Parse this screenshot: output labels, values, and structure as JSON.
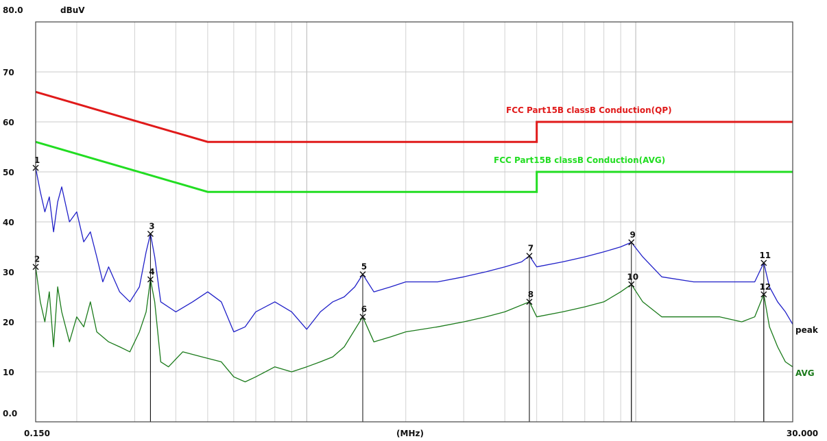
{
  "chart_data": {
    "type": "line",
    "x_scale": "log",
    "xlim": [
      0.15,
      30.0
    ],
    "ylim": [
      0,
      80
    ],
    "grid": true,
    "ylabel": "dBuV",
    "xlabel": "(MHz)",
    "y_ticks": [
      "0.0",
      "10",
      "20",
      "30",
      "40",
      "50",
      "60",
      "70",
      "80.0"
    ],
    "y_tick_values": [
      0,
      10,
      20,
      30,
      40,
      50,
      60,
      70,
      80
    ],
    "x_tick_labels": [
      "0.150",
      "30.000"
    ],
    "limits": [
      {
        "name": "FCC  Part15B classB Conduction(QP)",
        "color": "#e01a1a",
        "points": [
          [
            0.15,
            66
          ],
          [
            0.5,
            56
          ],
          [
            5.0,
            56
          ],
          [
            5.0,
            60
          ],
          [
            30.0,
            60
          ]
        ]
      },
      {
        "name": "FCC  Part15B classB Conduction(AVG)",
        "color": "#22dd22",
        "points": [
          [
            0.15,
            56
          ],
          [
            0.5,
            46
          ],
          [
            5.0,
            46
          ],
          [
            5.0,
            50
          ],
          [
            30.0,
            50
          ]
        ]
      }
    ],
    "series": [
      {
        "name": "peak",
        "color": "#1f1fc8",
        "points": [
          [
            0.15,
            50.8
          ],
          [
            0.155,
            46
          ],
          [
            0.16,
            42
          ],
          [
            0.165,
            45
          ],
          [
            0.17,
            38
          ],
          [
            0.175,
            44
          ],
          [
            0.18,
            47
          ],
          [
            0.19,
            40
          ],
          [
            0.2,
            42
          ],
          [
            0.21,
            36
          ],
          [
            0.22,
            38
          ],
          [
            0.23,
            33
          ],
          [
            0.24,
            28
          ],
          [
            0.25,
            31
          ],
          [
            0.27,
            26
          ],
          [
            0.29,
            24
          ],
          [
            0.31,
            27
          ],
          [
            0.325,
            34
          ],
          [
            0.335,
            37.6
          ],
          [
            0.345,
            33
          ],
          [
            0.36,
            24
          ],
          [
            0.4,
            22
          ],
          [
            0.45,
            24
          ],
          [
            0.5,
            26
          ],
          [
            0.55,
            24
          ],
          [
            0.6,
            18
          ],
          [
            0.65,
            19
          ],
          [
            0.7,
            22
          ],
          [
            0.8,
            24
          ],
          [
            0.9,
            22
          ],
          [
            1.0,
            18.5
          ],
          [
            1.1,
            22
          ],
          [
            1.2,
            24
          ],
          [
            1.3,
            25
          ],
          [
            1.4,
            27
          ],
          [
            1.48,
            29.5
          ],
          [
            1.6,
            26
          ],
          [
            1.8,
            27
          ],
          [
            2.0,
            28
          ],
          [
            2.5,
            28
          ],
          [
            3.0,
            29
          ],
          [
            3.5,
            30
          ],
          [
            4.0,
            31
          ],
          [
            4.5,
            32
          ],
          [
            4.75,
            33.2
          ],
          [
            5.0,
            31
          ],
          [
            6.0,
            32
          ],
          [
            7.0,
            33
          ],
          [
            8.0,
            34
          ],
          [
            9.0,
            35
          ],
          [
            9.7,
            35.9
          ],
          [
            10.5,
            33
          ],
          [
            12.0,
            29
          ],
          [
            15.0,
            28
          ],
          [
            18.0,
            28
          ],
          [
            21.0,
            28
          ],
          [
            23.0,
            28
          ],
          [
            24.5,
            31.8
          ],
          [
            25.5,
            27
          ],
          [
            27.0,
            24
          ],
          [
            28.5,
            22
          ],
          [
            30.0,
            19.5
          ]
        ]
      },
      {
        "name": "AVG",
        "color": "#1a7a1a",
        "points": [
          [
            0.15,
            31
          ],
          [
            0.155,
            24
          ],
          [
            0.16,
            20
          ],
          [
            0.165,
            26
          ],
          [
            0.17,
            15
          ],
          [
            0.175,
            27
          ],
          [
            0.18,
            22
          ],
          [
            0.19,
            16
          ],
          [
            0.2,
            21
          ],
          [
            0.21,
            19
          ],
          [
            0.22,
            24
          ],
          [
            0.23,
            18
          ],
          [
            0.25,
            16
          ],
          [
            0.27,
            15
          ],
          [
            0.29,
            14
          ],
          [
            0.31,
            18
          ],
          [
            0.325,
            22
          ],
          [
            0.335,
            28.5
          ],
          [
            0.345,
            24
          ],
          [
            0.36,
            12
          ],
          [
            0.38,
            11
          ],
          [
            0.42,
            14
          ],
          [
            0.48,
            13
          ],
          [
            0.55,
            12
          ],
          [
            0.6,
            9
          ],
          [
            0.65,
            8
          ],
          [
            0.7,
            9
          ],
          [
            0.8,
            11
          ],
          [
            0.9,
            10
          ],
          [
            1.0,
            11
          ],
          [
            1.1,
            12
          ],
          [
            1.2,
            13
          ],
          [
            1.3,
            15
          ],
          [
            1.48,
            21
          ],
          [
            1.6,
            16
          ],
          [
            1.8,
            17
          ],
          [
            2.0,
            18
          ],
          [
            2.5,
            19
          ],
          [
            3.0,
            20
          ],
          [
            3.5,
            21
          ],
          [
            4.0,
            22
          ],
          [
            4.75,
            24
          ],
          [
            5.0,
            21
          ],
          [
            6.0,
            22
          ],
          [
            7.0,
            23
          ],
          [
            8.0,
            24
          ],
          [
            9.0,
            26
          ],
          [
            9.7,
            27.5
          ],
          [
            10.5,
            24
          ],
          [
            12.0,
            21
          ],
          [
            15.0,
            21
          ],
          [
            18.0,
            21
          ],
          [
            21.0,
            20
          ],
          [
            23.0,
            21
          ],
          [
            24.5,
            25.5
          ],
          [
            25.5,
            19
          ],
          [
            27.0,
            15
          ],
          [
            28.5,
            12
          ],
          [
            30.0,
            11
          ]
        ]
      }
    ],
    "markers": [
      {
        "label": "1",
        "x": 0.15,
        "y": 50.8
      },
      {
        "label": "2",
        "x": 0.15,
        "y": 31.0
      },
      {
        "label": "3",
        "x": 0.335,
        "y": 37.6
      },
      {
        "label": "4",
        "x": 0.335,
        "y": 28.5
      },
      {
        "label": "5",
        "x": 1.48,
        "y": 29.5
      },
      {
        "label": "6",
        "x": 1.48,
        "y": 21.0
      },
      {
        "label": "7",
        "x": 4.75,
        "y": 33.2
      },
      {
        "label": "8",
        "x": 4.75,
        "y": 24.0
      },
      {
        "label": "9",
        "x": 9.7,
        "y": 35.9
      },
      {
        "label": "10",
        "x": 9.7,
        "y": 27.5
      },
      {
        "label": "11",
        "x": 24.5,
        "y": 31.8
      },
      {
        "label": "12",
        "x": 24.5,
        "y": 25.5
      }
    ]
  }
}
